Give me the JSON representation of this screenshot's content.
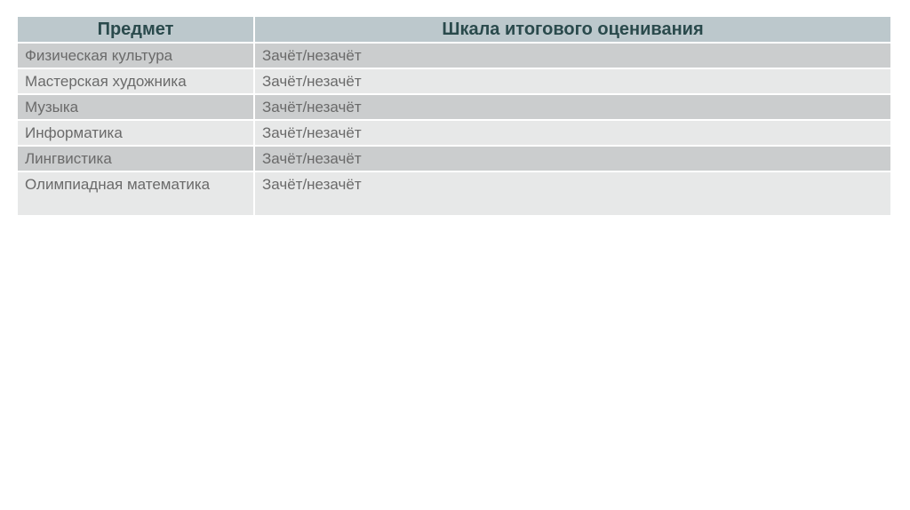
{
  "table": {
    "headers": [
      "Предмет",
      "Шкала итогового оценивания"
    ],
    "rows": [
      [
        "Физическая культура",
        "Зачёт/незачёт"
      ],
      [
        "Мастерская художника",
        "Зачёт/незачёт"
      ],
      [
        "Музыка",
        "Зачёт/незачёт"
      ],
      [
        "Информатика",
        "Зачёт/незачёт"
      ],
      [
        "Лингвистика",
        "Зачёт/незачёт"
      ],
      [
        "Олимпиадная математика",
        "Зачёт/незачёт"
      ]
    ]
  },
  "colors": {
    "header_bg": "#bcc8cc",
    "header_text": "#2a4a4c",
    "row_dark": "#cbcdce",
    "row_light": "#e7e8e8"
  }
}
